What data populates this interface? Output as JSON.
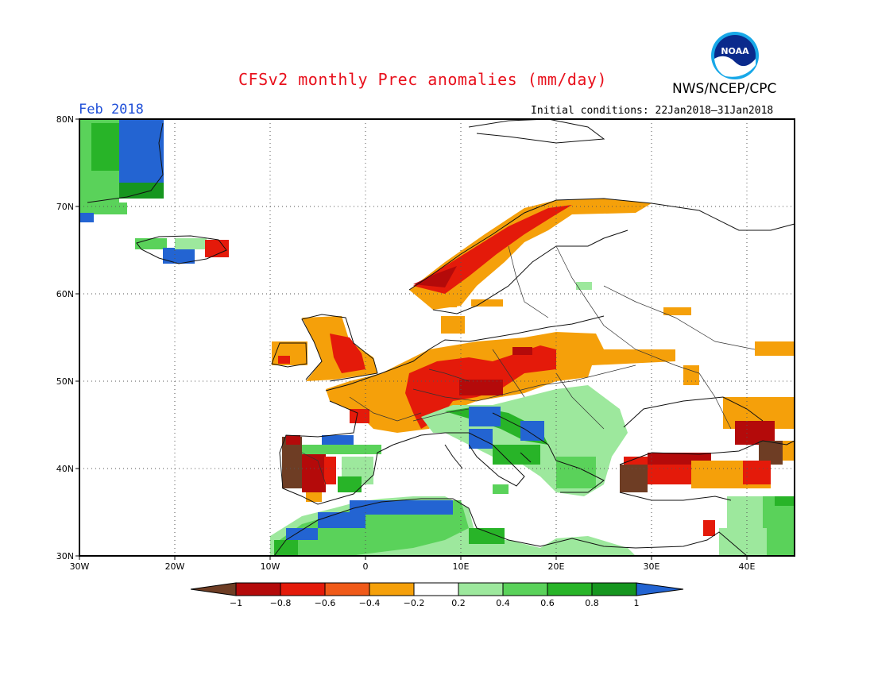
{
  "header": {
    "title": "CFSv2 monthly Prec anomalies (mm/day)",
    "agency": "NWS/NCEP/CPC",
    "logo_text": "NOAA",
    "month": "Feb 2018",
    "initial_conditions": "Initial conditions: 22Jan2018–31Jan2018"
  },
  "map": {
    "lon_ticks": [
      "30W",
      "20W",
      "10W",
      "0",
      "10E",
      "20E",
      "30E",
      "40E"
    ],
    "lat_ticks": [
      "80N",
      "70N",
      "60N",
      "50N",
      "40N",
      "30N"
    ],
    "lon_range": [
      -30,
      45
    ],
    "lat_range": [
      30,
      80
    ]
  },
  "colorbar": {
    "labels": [
      "−1",
      "−0.8",
      "−0.6",
      "−0.4",
      "−0.2",
      "0.2",
      "0.4",
      "0.6",
      "0.8",
      "1"
    ],
    "colors": {
      "below": "#6e3d24",
      "c1": "#b40a0a",
      "c2": "#e41a0a",
      "c3": "#f05a19",
      "c4": "#f5a00a",
      "c5": "#ffffff",
      "c6": "#9de89d",
      "c7": "#5ad25a",
      "c8": "#28b428",
      "c9": "#16961f",
      "above": "#2364d2"
    }
  },
  "colors": {
    "title": "#e8101c",
    "month": "#1f4fd8",
    "grid": "#555555"
  }
}
